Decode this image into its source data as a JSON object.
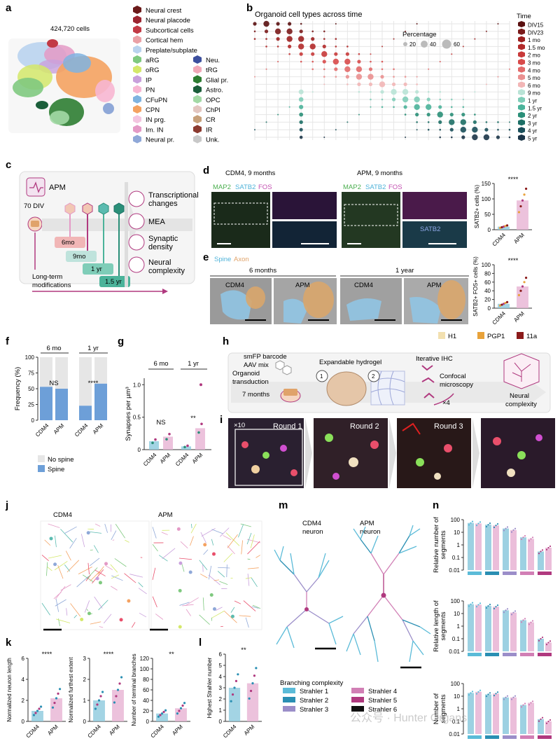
{
  "panels": {
    "a": "a",
    "b": "b",
    "c": "c",
    "d": "d",
    "e": "e",
    "f": "f",
    "g": "g",
    "h": "h",
    "i": "i",
    "j": "j",
    "k": "k",
    "l": "l",
    "m": "m",
    "n": "n"
  },
  "panel_a": {
    "cell_count": "424,720 cells",
    "legend_col1": [
      {
        "label": "Neural crest",
        "color": "#6b1a1a"
      },
      {
        "label": "Neural placode",
        "color": "#9c2530"
      },
      {
        "label": "Subcortical cells",
        "color": "#c23a45"
      },
      {
        "label": "Cortical hem",
        "color": "#eaa1a6"
      },
      {
        "label": "Preplate/subplate",
        "color": "#b9d3ee"
      },
      {
        "label": "aRG",
        "color": "#7fc97f"
      },
      {
        "label": "oRG",
        "color": "#d4e86a"
      },
      {
        "label": "IP",
        "color": "#c9a0dc"
      },
      {
        "label": "PN",
        "color": "#f7b6d2"
      },
      {
        "label": "CFuPN",
        "color": "#7fb3e0"
      },
      {
        "label": "CPN",
        "color": "#f4a261"
      },
      {
        "label": "IN prg.",
        "color": "#f3c5e0"
      },
      {
        "label": "Im. IN",
        "color": "#e49ac6"
      },
      {
        "label": "Neural pr.",
        "color": "#8fa8d8"
      }
    ],
    "legend_col2": [
      {
        "label": "Neu.",
        "color": "#3c4f9e"
      },
      {
        "label": "tRG",
        "color": "#f1a8b8"
      },
      {
        "label": "Glial pr.",
        "color": "#2e7d32"
      },
      {
        "label": "Astro.",
        "color": "#1b5e3a"
      },
      {
        "label": "OPC",
        "color": "#a3d9a5"
      },
      {
        "label": "ChPl",
        "color": "#e3c6c0"
      },
      {
        "label": "CR",
        "color": "#c7a07a"
      },
      {
        "label": "IR",
        "color": "#8b3a2f"
      },
      {
        "label": "Unk.",
        "color": "#c8c8c8"
      }
    ]
  },
  "panel_b": {
    "title": "Organoid cell types across time",
    "percentage_label": "Percentage",
    "size_legend": [
      "20",
      "40",
      "60"
    ],
    "time_title": "Time",
    "times": [
      {
        "label": "DIV15",
        "color": "#5a1010"
      },
      {
        "label": "DIV23",
        "color": "#7a1a1a"
      },
      {
        "label": "1 mo",
        "color": "#9c2020"
      },
      {
        "label": "1.5 mo",
        "color": "#b22a2a"
      },
      {
        "label": "2 mo",
        "color": "#c83a3a"
      },
      {
        "label": "3 mo",
        "color": "#d84a4a"
      },
      {
        "label": "4 mo",
        "color": "#e26a6a"
      },
      {
        "label": "5 mo",
        "color": "#ea9090"
      },
      {
        "label": "6 mo",
        "color": "#f2b6b6"
      },
      {
        "label": "9 mo",
        "color": "#b9e3d6"
      },
      {
        "label": "1 yr",
        "color": "#7fcdb8"
      },
      {
        "label": "1.5 yr",
        "color": "#4bb39a"
      },
      {
        "label": "2 yr",
        "color": "#2a8f78"
      },
      {
        "label": "3 yr",
        "color": "#1d6f66"
      },
      {
        "label": "4 yr",
        "color": "#1a4f5a"
      },
      {
        "label": "5 yr",
        "color": "#1c3548"
      }
    ]
  },
  "panel_c": {
    "apm": "APM",
    "div": "70 DIV",
    "timepoints": [
      "6mo",
      "9mo",
      "1 yr",
      "1.5 yr"
    ],
    "long_term": "Long-term",
    "modifications": "modifications",
    "outcomes": [
      "Transcriptional",
      "changes",
      "MEA",
      "Synaptic",
      "density",
      "Neural",
      "complexity"
    ]
  },
  "panel_d": {
    "left_title": "CDM4, 9 months",
    "right_title": "APM, 9 months",
    "stain": [
      "MAP2",
      "SATB2",
      "FOS"
    ],
    "satb2_inset": "SATB2",
    "chart": {
      "ylabel": "SATB2+ cells (%)",
      "sig": "****",
      "yticks": [
        "0",
        "50",
        "100",
        "150"
      ],
      "categories": [
        "CDM4",
        "APM"
      ],
      "values": [
        10,
        95
      ]
    }
  },
  "panel_e": {
    "legend": [
      "Spine",
      "Axon"
    ],
    "groups": [
      "6 months",
      "1 year"
    ],
    "em_labels": [
      "CDM4",
      "APM",
      "CDM4",
      "APM"
    ],
    "chart": {
      "ylabel": "SATB2+ FOS+ cells (%)",
      "sig": "****",
      "yticks": [
        "0",
        "20",
        "40",
        "60",
        "80",
        "100"
      ],
      "categories": [
        "CDM4",
        "APM"
      ],
      "values": [
        10,
        50
      ]
    },
    "lines": [
      {
        "label": "H1",
        "color": "#f2e0b0"
      },
      {
        "label": "PGP1",
        "color": "#e8a23a"
      },
      {
        "label": "11a",
        "color": "#8b1a1a"
      }
    ]
  },
  "panel_f": {
    "ylabel": "Frequency (%)",
    "groups": [
      "6 mo",
      "1 yr"
    ],
    "yticks": [
      "0",
      "25",
      "50",
      "75",
      "100"
    ],
    "categories": [
      "CDM4",
      "APM",
      "CDM4",
      "APM"
    ],
    "spine": [
      53,
      50,
      23,
      58
    ],
    "sig": [
      "NS",
      "****"
    ],
    "legend": [
      "No spine",
      "Spine"
    ]
  },
  "panel_g": {
    "ylabel": "Synapses per µm³",
    "groups": [
      "6 mo",
      "1 yr"
    ],
    "yticks": [
      "0",
      "0.5",
      "1.0"
    ],
    "categories": [
      "CDM4",
      "APM",
      "CDM4",
      "APM"
    ],
    "values": [
      0.13,
      0.2,
      0.05,
      0.33
    ],
    "sig": [
      "NS",
      "**"
    ]
  },
  "panel_h": {
    "barcode": "smFP barcode",
    "aav": "AAV mix",
    "organoid": "Organoid",
    "transduction": "transduction",
    "months": "7 months",
    "hydrogel": "Expandable hydrogel",
    "steps": [
      "1",
      "2"
    ],
    "iterative": "Iterative IHC",
    "confocal": "Confocal",
    "microscopy": "microscopy",
    "times4": "×4",
    "neural": "Neural",
    "complexity": "complexity"
  },
  "panel_i": {
    "x10": "×10",
    "rounds": [
      "Round 1",
      "Round 2",
      "Round 3"
    ]
  },
  "panel_j": {
    "titles": [
      "CDM4",
      "APM"
    ]
  },
  "panel_k": {
    "charts": [
      {
        "ylabel": "Normalized neuron length",
        "sig": "****",
        "yticks": [
          "0",
          "2",
          "4",
          "6"
        ],
        "categories": [
          "CDM4",
          "APM"
        ],
        "values": [
          1,
          2.2
        ]
      },
      {
        "ylabel": "Normalized furthest extent",
        "sig": "****",
        "yticks": [
          "0",
          "1",
          "2",
          "3"
        ],
        "categories": [
          "CDM4",
          "APM"
        ],
        "values": [
          1,
          1.5
        ]
      },
      {
        "ylabel": "Number of terminal branches",
        "sig": "**",
        "yticks": [
          "0",
          "20",
          "40",
          "60",
          "80",
          "100",
          "120"
        ],
        "categories": [
          "CDM4",
          "APM"
        ],
        "values": [
          15,
          25
        ]
      }
    ]
  },
  "panel_l": {
    "ylabel": "Highest Strahler number",
    "sig": "**",
    "yticks": [
      "0",
      "1",
      "2",
      "3",
      "4",
      "5",
      "6"
    ],
    "categories": [
      "CDM4",
      "APM"
    ],
    "values": [
      3,
      3.4
    ]
  },
  "panel_m": {
    "cdm4": [
      "CDM4",
      "neuron"
    ],
    "apm": [
      "APM",
      "neuron"
    ],
    "branching_title": "Branching complexity",
    "strahler": [
      {
        "label": "Strahler 1",
        "color": "#5bbbd8"
      },
      {
        "label": "Strahler 2",
        "color": "#2a8fb3"
      },
      {
        "label": "Strahler 3",
        "color": "#9b8ec9"
      },
      {
        "label": "Strahler 4",
        "color": "#d17fb5"
      },
      {
        "label": "Strahler 5",
        "color": "#b0397f"
      },
      {
        "label": "Strahler 6",
        "color": "#111111"
      }
    ]
  },
  "panel_n": {
    "charts": [
      {
        "ylabel": [
          "Relative number of",
          "segments"
        ],
        "yticks": [
          "100",
          "10",
          "1",
          "0.1",
          "0.01"
        ]
      },
      {
        "ylabel": [
          "Relative length of",
          "segments"
        ],
        "yticks": [
          "100",
          "10",
          "1",
          "0.1",
          "0.01"
        ]
      },
      {
        "ylabel": [
          "Number of",
          "segments"
        ],
        "yticks": [
          "100",
          "10",
          "1",
          "0.1",
          "0.01"
        ]
      }
    ]
  },
  "watermark": "公众号 · Hunter Organs"
}
